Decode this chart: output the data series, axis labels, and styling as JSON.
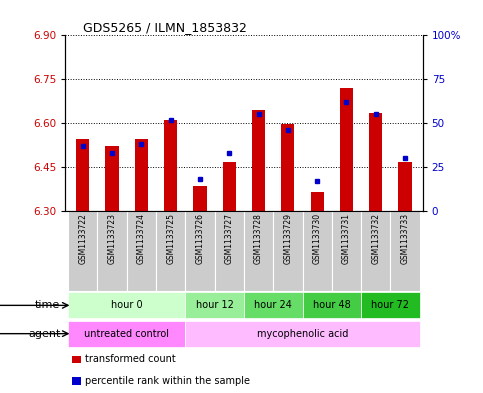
{
  "title": "GDS5265 / ILMN_1853832",
  "samples": [
    "GSM1133722",
    "GSM1133723",
    "GSM1133724",
    "GSM1133725",
    "GSM1133726",
    "GSM1133727",
    "GSM1133728",
    "GSM1133729",
    "GSM1133730",
    "GSM1133731",
    "GSM1133732",
    "GSM1133733"
  ],
  "red_values": [
    6.545,
    6.52,
    6.545,
    6.61,
    6.385,
    6.465,
    6.645,
    6.595,
    6.365,
    6.72,
    6.635,
    6.465
  ],
  "blue_values": [
    37,
    33,
    38,
    52,
    18,
    33,
    55,
    46,
    17,
    62,
    55,
    30
  ],
  "ylim_left": [
    6.3,
    6.9
  ],
  "ylim_right": [
    0,
    100
  ],
  "yticks_left": [
    6.3,
    6.45,
    6.6,
    6.75,
    6.9
  ],
  "yticks_right": [
    0,
    25,
    50,
    75,
    100
  ],
  "ytick_labels_right": [
    "0",
    "25",
    "50",
    "75",
    "100%"
  ],
  "bar_color": "#cc0000",
  "dot_color": "#0000cc",
  "time_groups": [
    {
      "label": "hour 0",
      "start": 0,
      "end": 4,
      "color": "#ccffcc"
    },
    {
      "label": "hour 12",
      "start": 4,
      "end": 6,
      "color": "#99ee99"
    },
    {
      "label": "hour 24",
      "start": 6,
      "end": 8,
      "color": "#66dd66"
    },
    {
      "label": "hour 48",
      "start": 8,
      "end": 10,
      "color": "#44cc44"
    },
    {
      "label": "hour 72",
      "start": 10,
      "end": 12,
      "color": "#22bb22"
    }
  ],
  "agent_groups": [
    {
      "label": "untreated control",
      "start": 0,
      "end": 4,
      "color": "#ff88ff"
    },
    {
      "label": "mycophenolic acid",
      "start": 4,
      "end": 12,
      "color": "#ffbbff"
    }
  ],
  "legend_items": [
    {
      "color": "#cc0000",
      "label": "transformed count"
    },
    {
      "color": "#0000cc",
      "label": "percentile rank within the sample"
    }
  ],
  "time_label": "time",
  "agent_label": "agent",
  "sample_bg_color": "#cccccc",
  "axis_color_left": "#cc0000",
  "axis_color_right": "#0000cc",
  "base_value": 6.3
}
